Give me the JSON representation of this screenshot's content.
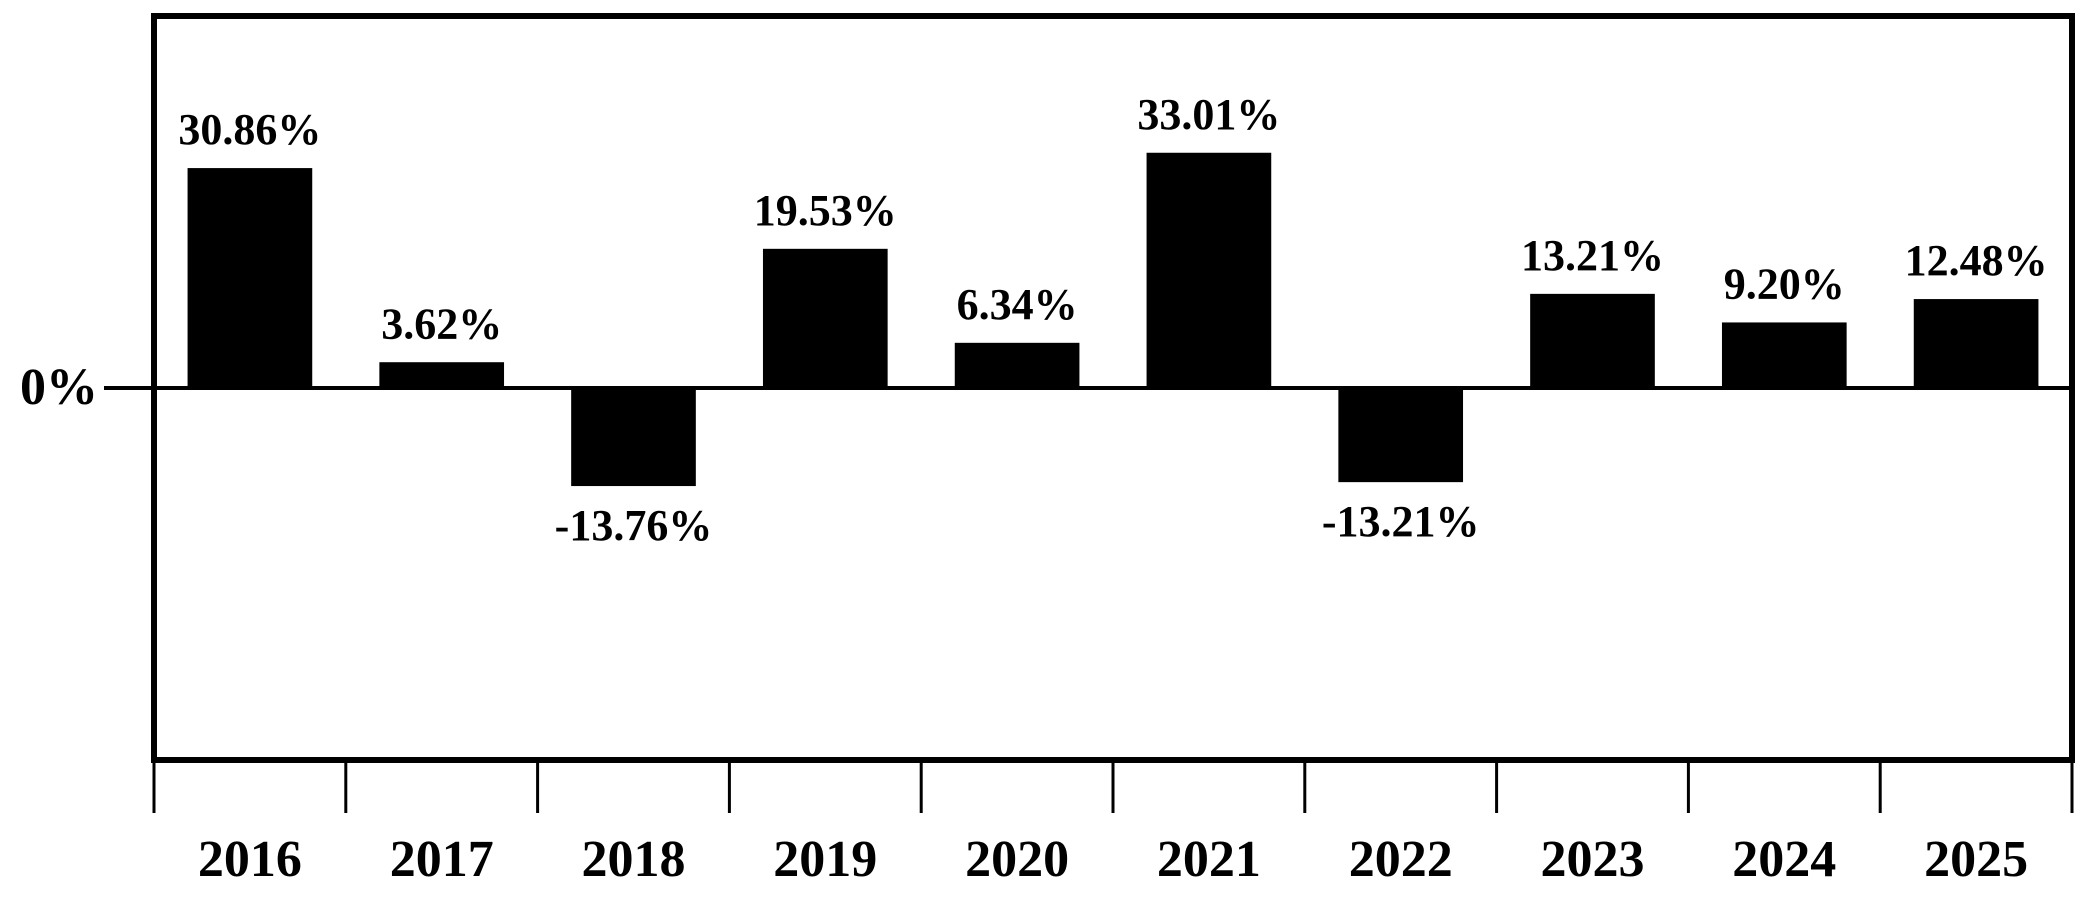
{
  "chart_data": {
    "type": "bar",
    "categories": [
      "2016",
      "2017",
      "2018",
      "2019",
      "2020",
      "2021",
      "2022",
      "2023",
      "2024",
      "2025"
    ],
    "values": [
      30.86,
      3.62,
      -13.76,
      19.53,
      6.34,
      33.01,
      -13.21,
      13.21,
      9.2,
      12.48
    ],
    "value_labels": [
      "30.86%",
      "3.62%",
      "-13.76%",
      "19.53%",
      "6.34%",
      "33.01%",
      "-13.21%",
      "13.21%",
      "9.20%",
      "12.48%"
    ],
    "color": "#000000",
    "ylim": [
      -52.2,
      52.2
    ],
    "yticks": [
      {
        "value": 0,
        "label": "0%"
      }
    ]
  }
}
